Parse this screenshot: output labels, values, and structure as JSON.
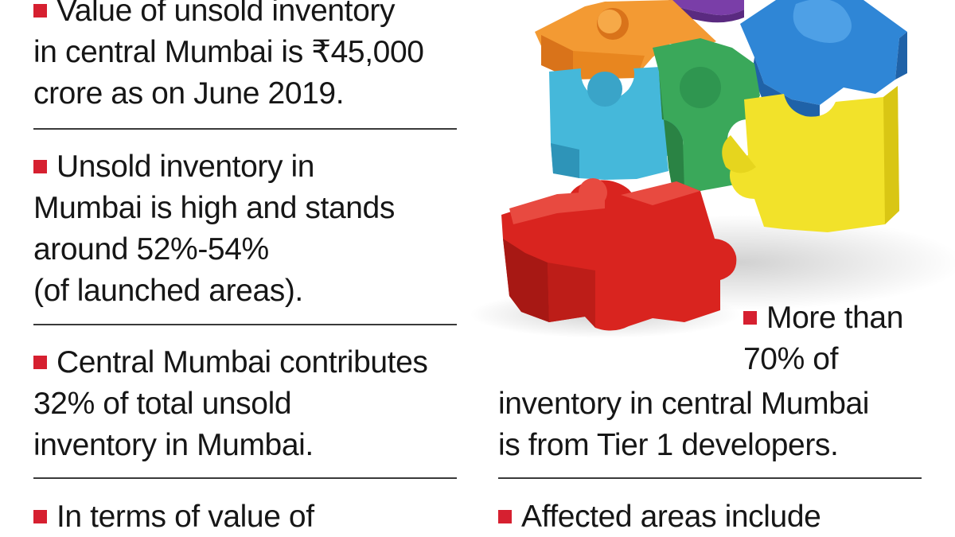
{
  "left_column": [
    {
      "id": "unsold-value",
      "lines": [
        "Value of unsold inventory",
        "in central Mumbai is ₹45,000",
        "crore as on June 2019."
      ]
    },
    {
      "id": "unsold-share",
      "lines": [
        "Unsold inventory in",
        "Mumbai is high and stands",
        "around 52%-54%",
        "(of launched areas)."
      ]
    },
    {
      "id": "central-contribution",
      "lines": [
        "Central Mumbai contributes",
        "32% of total unsold",
        "inventory in Mumbai."
      ]
    },
    {
      "id": "value-terms",
      "lines": [
        "In terms of value of"
      ]
    }
  ],
  "right_column": [
    {
      "id": "tier1-share",
      "lines": [
        "More than",
        "70% of",
        "inventory in central Mumbai",
        "is from Tier 1 developers."
      ]
    },
    {
      "id": "affected-areas",
      "lines": [
        "Affected areas include"
      ]
    }
  ],
  "colors": {
    "bullet": "#d62030",
    "text": "#161616",
    "rule": "#3a3a3a",
    "puzzle_orange": "#f08a24",
    "puzzle_purple": "#7a3ea8",
    "puzzle_blue": "#2f86d6",
    "puzzle_cyan": "#3fb6d8",
    "puzzle_green": "#3aa85a",
    "puzzle_yellow": "#f2e22a",
    "puzzle_red": "#d9241f"
  },
  "illustration": {
    "icon": "puzzle-house-icon"
  }
}
